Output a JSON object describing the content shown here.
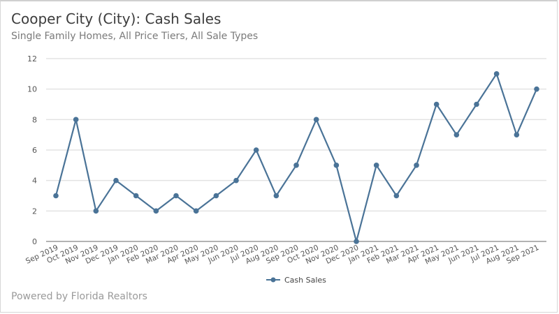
{
  "header": {
    "title": "Cooper City (City): Cash Sales",
    "subtitle": "Single Family Homes, All Price Tiers, All Sale Types"
  },
  "footer": {
    "text": "Powered by Florida Realtors"
  },
  "colors": {
    "series": "#4a7397",
    "grid": "#e3e3e3",
    "axis": "#999999"
  },
  "chart_data": {
    "type": "line",
    "title": "Cooper City (City): Cash Sales",
    "subtitle": "Single Family Homes, All Price Tiers, All Sale Types",
    "xlabel": "",
    "ylabel": "",
    "ylim": [
      0,
      12
    ],
    "yticks": [
      0,
      2,
      4,
      6,
      8,
      10,
      12
    ],
    "grid": true,
    "legend": "bottom-center",
    "categories": [
      "Sep 2019",
      "Oct 2019",
      "Nov 2019",
      "Dec 2019",
      "Jan 2020",
      "Feb 2020",
      "Mar 2020",
      "Apr 2020",
      "May 2020",
      "Jun 2020",
      "Jul 2020",
      "Aug 2020",
      "Sep 2020",
      "Oct 2020",
      "Nov 2020",
      "Dec 2020",
      "Jan 2021",
      "Feb 2021",
      "Mar 2021",
      "Apr 2021",
      "May 2021",
      "Jun 2021",
      "Jul 2021",
      "Aug 2021",
      "Sep 2021"
    ],
    "series": [
      {
        "name": "Cash Sales",
        "values": [
          3,
          8,
          2,
          4,
          3,
          2,
          3,
          2,
          3,
          4,
          6,
          3,
          5,
          8,
          5,
          0,
          5,
          3,
          5,
          9,
          7,
          9,
          11,
          7,
          10
        ]
      }
    ]
  }
}
